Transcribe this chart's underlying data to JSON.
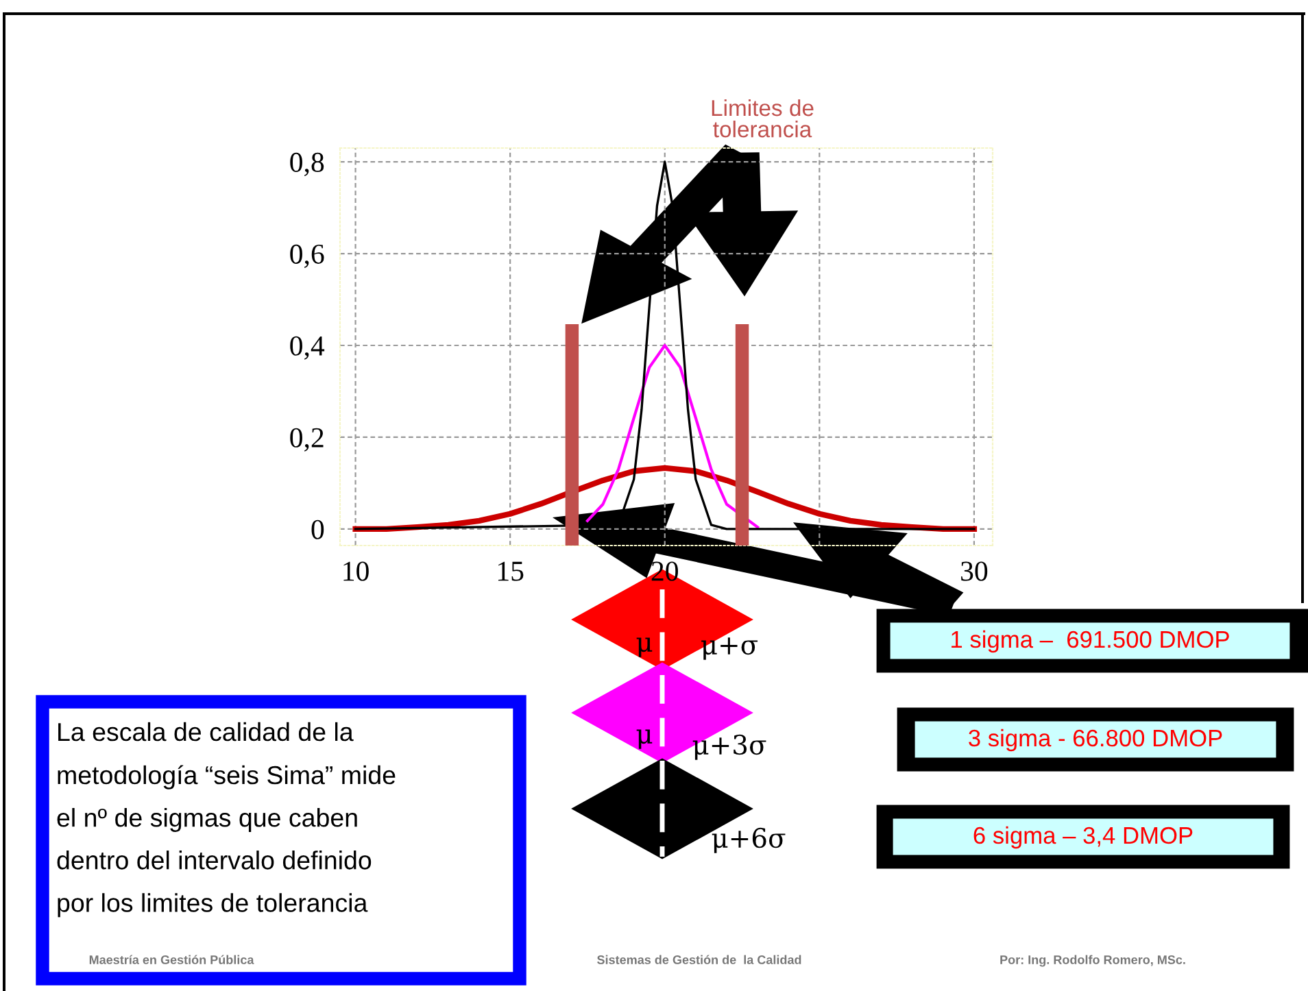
{
  "chart_data": {
    "type": "line",
    "xlim": [
      9.5,
      30.6
    ],
    "ylim": [
      -0.036,
      0.83
    ],
    "xticks": [
      10,
      15,
      20,
      {
        "value": 25,
        "label": null
      },
      30
    ],
    "yticks": [
      {
        "value": 0,
        "label": "0"
      },
      {
        "value": 0.2,
        "label": "0,2"
      },
      {
        "value": 0.4,
        "label": "0,4"
      },
      {
        "value": 0.6,
        "label": "0,6"
      },
      {
        "value": 0.8,
        "label": "0,8"
      }
    ],
    "grid": true,
    "marker": "none",
    "line_style": "solid",
    "series": [
      {
        "color": "#cc0000",
        "x": [
          10,
          11,
          12,
          13,
          14,
          15,
          16,
          17,
          18,
          19,
          20,
          21,
          22,
          23,
          24,
          25,
          26,
          27,
          28,
          29,
          30
        ],
        "values": [
          0,
          0,
          0.004,
          0.009,
          0.018,
          0.033,
          0.055,
          0.081,
          0.106,
          0.126,
          0.133,
          0.126,
          0.106,
          0.081,
          0.055,
          0.033,
          0.018,
          0.009,
          0.004,
          0,
          0
        ]
      },
      {
        "color": "#ff00ff",
        "x": [
          17.5,
          18,
          18.5,
          19,
          19.5,
          20,
          20.5,
          21,
          21.5,
          22,
          23
        ],
        "values": [
          0.018,
          0.054,
          0.13,
          0.242,
          0.352,
          0.4,
          0.352,
          0.242,
          0.13,
          0.054,
          0.004
        ]
      },
      {
        "color": "#000000",
        "x": [
          10,
          18.5,
          19,
          19.25,
          19.5,
          19.75,
          20,
          20.25,
          20.5,
          20.75,
          21,
          21.5,
          22,
          30
        ],
        "values": [
          0,
          0.009,
          0.108,
          0.26,
          0.484,
          0.704,
          0.8,
          0.704,
          0.484,
          0.26,
          0.108,
          0.009,
          0,
          0
        ]
      }
    ],
    "ref_lines": [
      {
        "axis": "x",
        "value": 17,
        "color": "#c0504d"
      },
      {
        "axis": "x",
        "value": 22.5,
        "color": "#c0504d"
      }
    ],
    "annotations": [
      "Limites de\ntolerancia",
      "μ",
      "μ+σ",
      "μ",
      "μ+3σ",
      "μ+6σ",
      "1 sigma –  691.500 DMOP",
      "3 sigma - 66.800 DMOP",
      "6 sigma – 3,4 DMOP",
      "La escala de calidad de la\nmetodología “seis Sima” mide\nel nº de sigmas que caben\ndentro del intervalo definido\npor los limites de tolerancia",
      "Maestría en Gestión Pública",
      "Sistemas de Gestión de  la Calidad",
      "Por: Ing. Rodolfo Romero, MSc."
    ]
  }
}
